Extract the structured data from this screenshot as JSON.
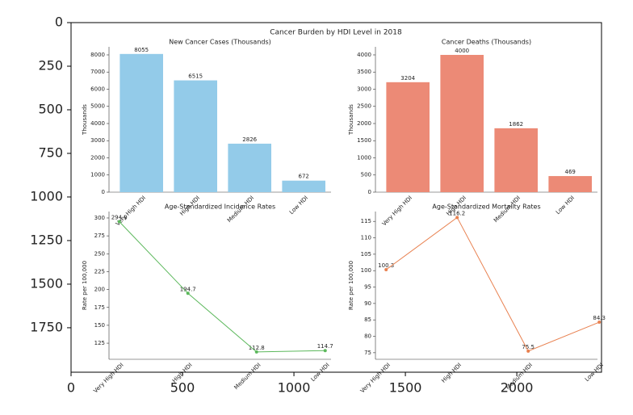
{
  "chart_data": [
    {
      "type": "image",
      "title": "Cancer Burden by HDI Level in 2018",
      "xlim": [
        0,
        2380
      ],
      "ylim": [
        2005,
        0
      ],
      "xticks": [
        0,
        500,
        1000,
        1500,
        2000
      ],
      "yticks": [
        0,
        250,
        500,
        750,
        1000,
        1250,
        1500,
        1750
      ]
    },
    {
      "type": "bar",
      "title": "New Cancer Cases (Thousands)",
      "y_label": "Thousands",
      "categories": [
        "Very High HDI",
        "High HDI",
        "Medium HDI",
        "Low HDI"
      ],
      "values": [
        8055,
        6515,
        2826,
        672
      ],
      "color": "#93cbe9",
      "ylim": [
        0,
        8470
      ],
      "yticks": [
        0,
        1000,
        2000,
        3000,
        4000,
        5000,
        6000,
        7000,
        8000
      ]
    },
    {
      "type": "bar",
      "title": "Cancer Deaths (Thousands)",
      "y_label": "Thousands",
      "categories": [
        "Very High HDI",
        "High HDI",
        "Medium HDI",
        "Low HDI"
      ],
      "values": [
        3204,
        4000,
        1862,
        469
      ],
      "color": "#ec8a76",
      "ylim": [
        0,
        4235
      ],
      "yticks": [
        0,
        500,
        1000,
        1500,
        2000,
        2500,
        3000,
        3500,
        4000
      ]
    },
    {
      "type": "line",
      "title": "Age-Standardized Incidence Rates",
      "y_label": "Rate per 100,000",
      "categories": [
        "Very High HDI",
        "High HDI",
        "Medium HDI",
        "Low HDI"
      ],
      "values": [
        294.9,
        194.7,
        112.8,
        114.7
      ],
      "color": "#5cb85c",
      "ylim": [
        102.5,
        309
      ],
      "yticks": [
        125,
        150,
        175,
        200,
        225,
        250,
        275,
        300
      ]
    },
    {
      "type": "line",
      "title": "Age-Standardized Mortality Rates",
      "y_label": "Rate per 100,000",
      "categories": [
        "Very High HDI",
        "High HDI",
        "Medium HDI",
        "Low HDI"
      ],
      "values": [
        100.3,
        116.2,
        75.5,
        84.3
      ],
      "color": "#e8804f",
      "ylim": [
        73,
        118
      ],
      "yticks": [
        75,
        80,
        85,
        90,
        95,
        100,
        105,
        110,
        115
      ]
    }
  ]
}
